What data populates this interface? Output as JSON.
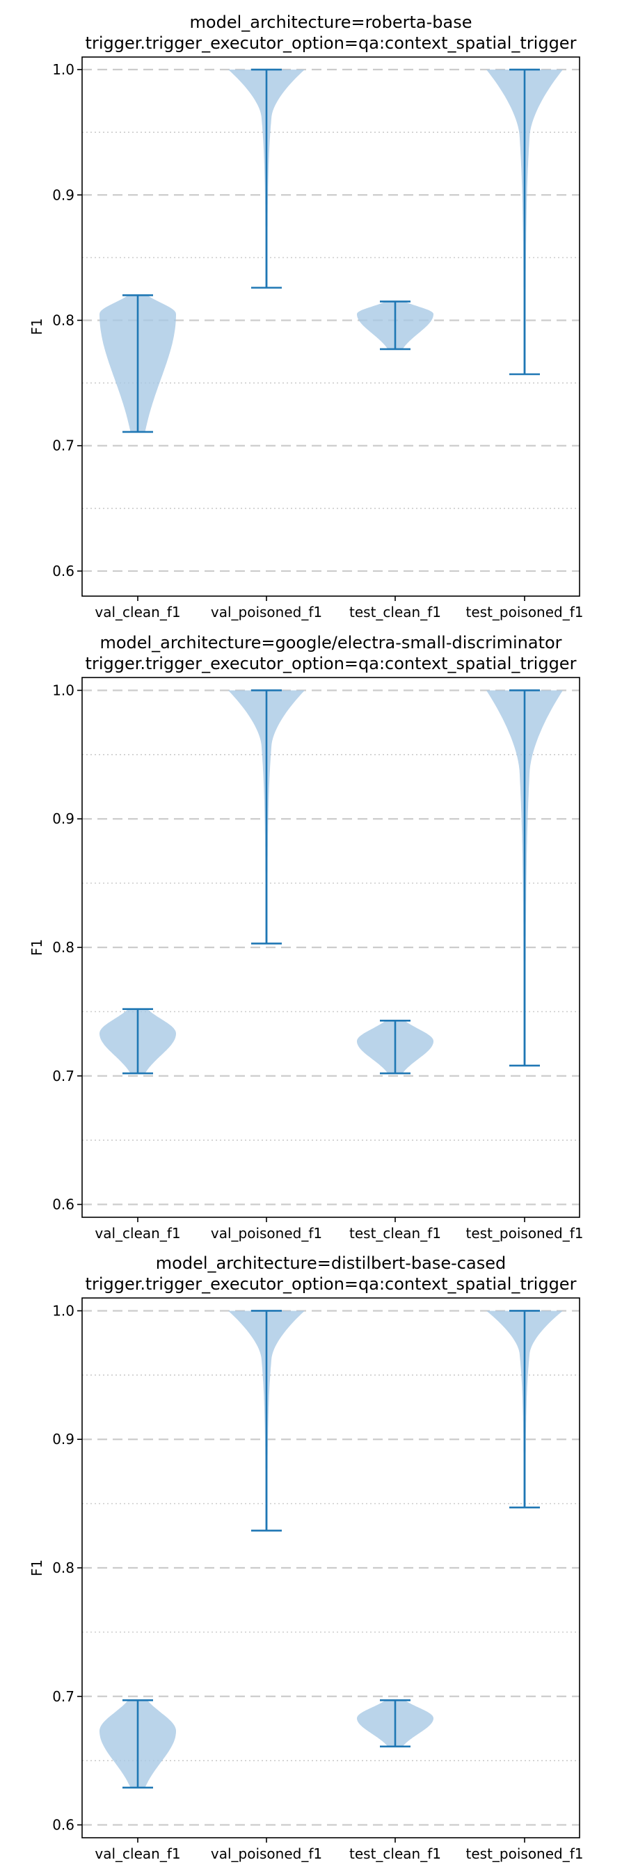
{
  "chart_data": [
    {
      "type": "violin",
      "title": "model_architecture=roberta-base",
      "subtitle": "trigger.trigger_executor_option=qa:context_spatial_trigger",
      "xlabel": "",
      "ylabel": "F1",
      "ylim": [
        0.58,
        1.01
      ],
      "yticks": [
        "0.6",
        "0.7",
        "0.8",
        "0.9",
        "1.0"
      ],
      "grid": "horizontal dashed major, dotted minor",
      "categories": [
        "val_clean_f1",
        "val_poisoned_f1",
        "test_clean_f1",
        "test_poisoned_f1"
      ],
      "series": [
        {
          "min": 0.711,
          "max": 0.82,
          "peak": 0.805
        },
        {
          "min": 0.826,
          "max": 1.0,
          "peak": 1.0
        },
        {
          "min": 0.777,
          "max": 0.815,
          "peak": 0.805
        },
        {
          "min": 0.757,
          "max": 1.0,
          "peak": 1.0
        }
      ]
    },
    {
      "type": "violin",
      "title": "model_architecture=google/electra-small-discriminator",
      "subtitle": "trigger.trigger_executor_option=qa:context_spatial_trigger",
      "xlabel": "",
      "ylabel": "F1",
      "ylim": [
        0.59,
        1.01
      ],
      "yticks": [
        "0.6",
        "0.7",
        "0.8",
        "0.9",
        "1.0"
      ],
      "grid": "horizontal dashed major, dotted minor",
      "categories": [
        "val_clean_f1",
        "val_poisoned_f1",
        "test_clean_f1",
        "test_poisoned_f1"
      ],
      "series": [
        {
          "min": 0.702,
          "max": 0.752,
          "peak": 0.733
        },
        {
          "min": 0.803,
          "max": 1.0,
          "peak": 1.0
        },
        {
          "min": 0.702,
          "max": 0.743,
          "peak": 0.727
        },
        {
          "min": 0.708,
          "max": 1.0,
          "peak": 1.0
        }
      ]
    },
    {
      "type": "violin",
      "title": "model_architecture=distilbert-base-cased",
      "subtitle": "trigger.trigger_executor_option=qa:context_spatial_trigger",
      "xlabel": "",
      "ylabel": "F1",
      "ylim": [
        0.59,
        1.01
      ],
      "yticks": [
        "0.6",
        "0.7",
        "0.8",
        "0.9",
        "1.0"
      ],
      "grid": "horizontal dashed major, dotted minor",
      "categories": [
        "val_clean_f1",
        "val_poisoned_f1",
        "test_clean_f1",
        "test_poisoned_f1"
      ],
      "series": [
        {
          "min": 0.629,
          "max": 0.697,
          "peak": 0.673
        },
        {
          "min": 0.829,
          "max": 1.0,
          "peak": 1.0
        },
        {
          "min": 0.661,
          "max": 0.697,
          "peak": 0.683
        },
        {
          "min": 0.847,
          "max": 1.0,
          "peak": 1.0
        }
      ]
    }
  ],
  "colors": {
    "violin_fill": "#a6c8e4",
    "line": "#1f77b4",
    "grid": "#cccccc",
    "axes": "#000000"
  }
}
